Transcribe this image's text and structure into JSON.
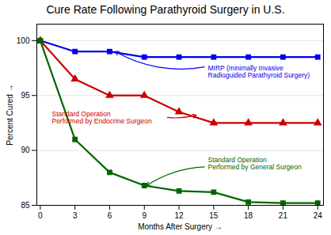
{
  "chart_data": {
    "type": "line",
    "title": "Cure Rate Following Parathyroid Surgery in U.S.",
    "xlabel": "Months After Surgery",
    "ylabel": "Percent Cured",
    "x": [
      0,
      3,
      6,
      9,
      12,
      15,
      18,
      21,
      24
    ],
    "series": [
      {
        "color": "#0000EE",
        "marker": "square",
        "values": [
          100,
          99,
          99,
          98.5,
          98.5,
          98.5,
          98.5,
          98.5,
          98.5
        ]
      },
      {
        "color": "#CC0000",
        "marker": "triangle",
        "values": [
          100,
          96.5,
          95,
          95,
          93.5,
          92.5,
          92.5,
          92.5,
          92.5
        ]
      },
      {
        "color": "#006600",
        "marker": "square",
        "values": [
          100,
          91,
          88,
          86.8,
          86.3,
          86.2,
          85.3,
          85.2,
          85.2
        ]
      }
    ],
    "xlim": [
      -0.3,
      24.5
    ],
    "ylim": [
      85,
      101.5
    ],
    "xticks": [
      0,
      3,
      6,
      9,
      12,
      15,
      18,
      21,
      24
    ],
    "yticks": [
      85,
      90,
      95,
      100
    ],
    "grid": true,
    "annotations": [
      {
        "text": "MIRP (minimally Invasive\nRadioguided Parathyroid Surgery)",
        "color": "#0000EE"
      },
      {
        "text": "Standard Operation\nPerformed by Endocrine Surgeon",
        "color": "#CC0000"
      },
      {
        "text": "Standard Operation\nPerformed by General Surgeon",
        "color": "#006600"
      }
    ]
  }
}
